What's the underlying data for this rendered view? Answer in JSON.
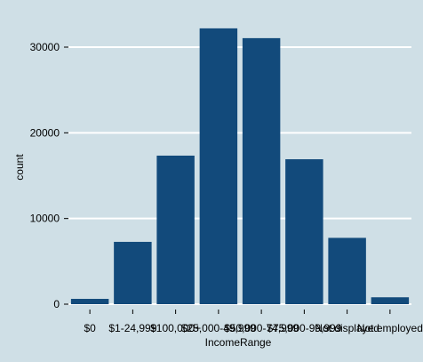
{
  "chart_data": {
    "type": "bar",
    "title": "",
    "xlabel": "IncomeRange",
    "ylabel": "count",
    "categories": [
      "$0",
      "$1-24,999",
      "$100,000+",
      "$25,000-49,999",
      "$50,000-74,999",
      "$75,000-99,999",
      "Not displayed",
      "Not employed"
    ],
    "values": [
      621,
      7274,
      17337,
      32192,
      31050,
      16916,
      7741,
      806
    ],
    "ylim": [
      0,
      34500
    ],
    "yticks": [
      0,
      10000,
      20000,
      30000
    ],
    "ytick_labels": [
      "0",
      "10000",
      "20000",
      "30000"
    ],
    "grid": true,
    "colors": {
      "background": "#cfdfe6",
      "bar": "#124a7b",
      "grid": "#ffffff"
    }
  }
}
